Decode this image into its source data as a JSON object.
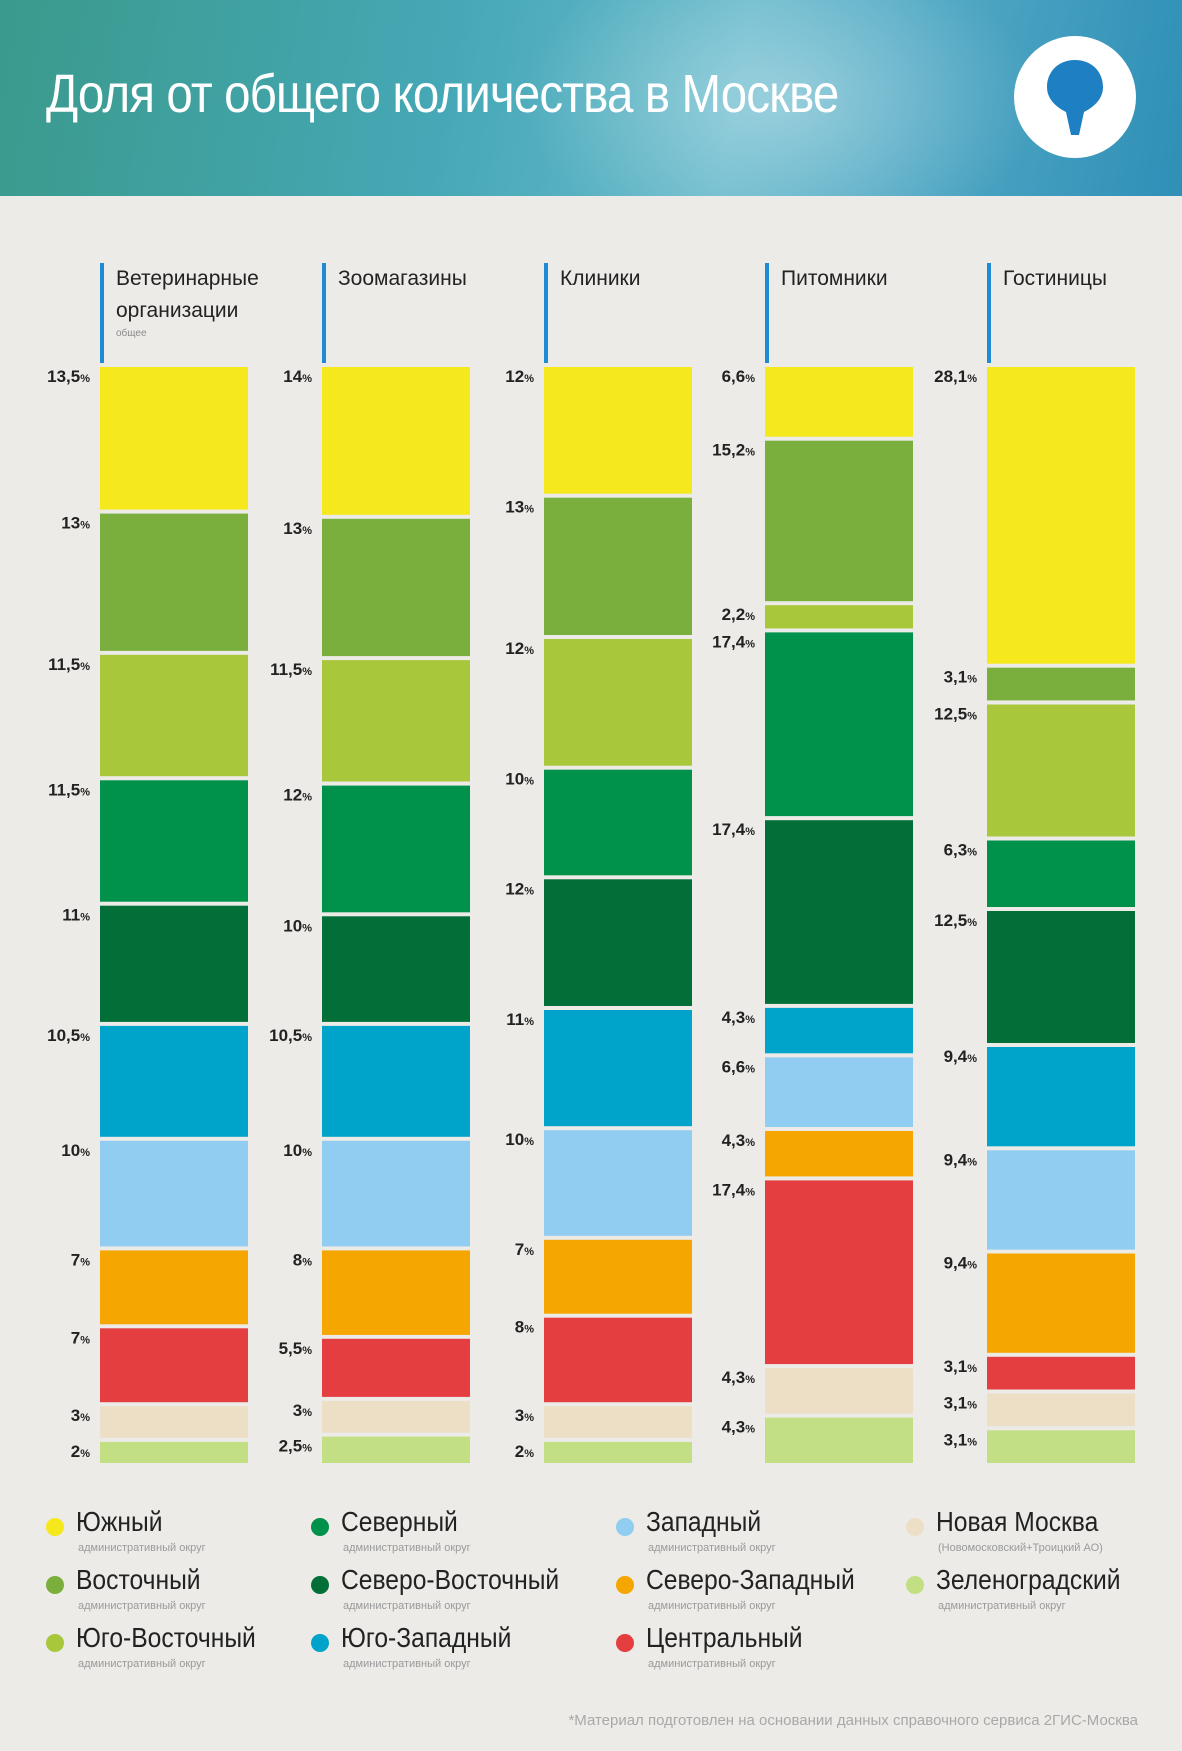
{
  "header": {
    "title": "Доля от общего количества в Москве",
    "logo_icon": "location-pin-logo-icon"
  },
  "chart_data": {
    "type": "stacked-bar",
    "unit": "%",
    "columns": [
      {
        "label": "Ветеринарные организации",
        "note": "общее",
        "values": [
          13.5,
          13,
          11.5,
          11.5,
          11,
          10.5,
          10,
          7,
          7,
          3,
          2
        ],
        "labels": [
          "13,5",
          "13",
          "11,5",
          "11,5",
          "11",
          "10,5",
          "10",
          "7",
          "7",
          "3",
          "2"
        ]
      },
      {
        "label": "Зоомагазины",
        "note": "",
        "values": [
          14,
          13,
          11.5,
          12,
          10,
          10.5,
          10,
          8,
          5.5,
          3,
          2.5
        ],
        "labels": [
          "14",
          "13",
          "11,5",
          "12",
          "10",
          "10,5",
          "10",
          "8",
          "5,5",
          "3",
          "2,5"
        ]
      },
      {
        "label": "Клиники",
        "note": "",
        "values": [
          12,
          13,
          12,
          10,
          12,
          11,
          10,
          7,
          8,
          3,
          2
        ],
        "labels": [
          "12",
          "13",
          "12",
          "10",
          "12",
          "11",
          "10",
          "7",
          "8",
          "3",
          "2"
        ]
      },
      {
        "label": "Питомники",
        "note": "",
        "values": [
          6.6,
          15.2,
          2.2,
          17.4,
          17.4,
          4.3,
          6.6,
          4.3,
          17.4,
          4.3,
          4.3
        ],
        "labels": [
          "6,6",
          "15,2",
          "2,2",
          "17,4",
          "17,4",
          "4,3",
          "6,6",
          "4,3",
          "17,4",
          "4,3",
          "4,3"
        ]
      },
      {
        "label": "Гостиницы",
        "note": "",
        "values": [
          28.1,
          3.1,
          12.5,
          6.3,
          12.5,
          9.4,
          9.4,
          9.4,
          3.1,
          3.1,
          3.1
        ],
        "labels": [
          "28,1",
          "3,1",
          "12,5",
          "6,3",
          "12,5",
          "9,4",
          "9,4",
          "9,4",
          "3,1",
          "3,1",
          "3,1"
        ]
      }
    ],
    "categories": [
      {
        "name": "Южный",
        "sub": "административный округ",
        "color": "#f5e81d"
      },
      {
        "name": "Восточный",
        "sub": "административный округ",
        "color": "#7baf3d"
      },
      {
        "name": "Юго-Восточный",
        "sub": "административный округ",
        "color": "#a8c73a"
      },
      {
        "name": "Северный",
        "sub": "административный округ",
        "color": "#00914a"
      },
      {
        "name": "Северо-Восточный",
        "sub": "административный округ",
        "color": "#016f37"
      },
      {
        "name": "Юго-Западный",
        "sub": "административный округ",
        "color": "#00a3c9"
      },
      {
        "name": "Западный",
        "sub": "административный округ",
        "color": "#90cdf0"
      },
      {
        "name": "Северо-Западный",
        "sub": "административный округ",
        "color": "#f6a600"
      },
      {
        "name": "Центральный",
        "sub": "административный округ",
        "color": "#e53e41"
      },
      {
        "name": "Новая Москва",
        "sub": "(Новомосковский+Троицкий АО)",
        "color": "#ecdfc5"
      },
      {
        "name": "Зеленоградский",
        "sub": "административный округ",
        "color": "#c3df84"
      }
    ]
  },
  "legend_order": [
    0,
    1,
    2,
    3,
    4,
    5,
    6,
    7,
    8,
    9,
    10
  ],
  "footnote": "*Материал подготовлен на основании данных справочного сервиса 2ГИС-Москва"
}
